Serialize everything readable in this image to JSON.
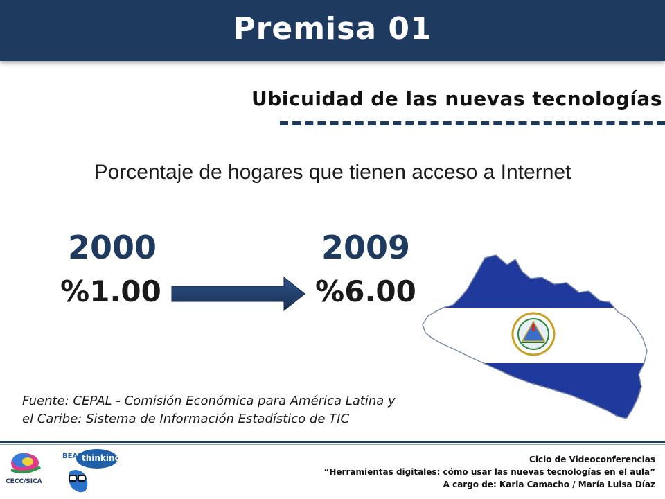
{
  "header": {
    "title": "Premisa 01"
  },
  "subtitle": "Ubicuidad de las nuevas tecnologías",
  "heading": "Porcentaje de hogares que tienen acceso a Internet",
  "stats": [
    {
      "year": "2000",
      "value": "%1.00"
    },
    {
      "year": "2009",
      "value": "%6.00"
    }
  ],
  "source": {
    "line1": "Fuente: CEPAL - Comisión Económica para América Latina y",
    "line2": "el Caribe: Sistema de Información Estadístico de TIC"
  },
  "footer": {
    "line1": "Ciclo de Videoconferencias",
    "line2": "“Herramientas digitales: cómo usar las nuevas tecnologías en el aula”",
    "line3": "A cargo de: Karla Camacho / María Luisa Díaz"
  },
  "logos": {
    "ceccsica": "CECC/SICA",
    "bean_a": "BEAN",
    "bean_b": "thinking"
  },
  "colors": {
    "header_bg": "#1e3a5f",
    "flag_blue": "#1f3a9c",
    "flag_white": "#ffffff",
    "arrow": "#1e3a5f"
  },
  "icons": {
    "arrow": "right-arrow-icon",
    "map": "el-salvador-flag-map"
  }
}
